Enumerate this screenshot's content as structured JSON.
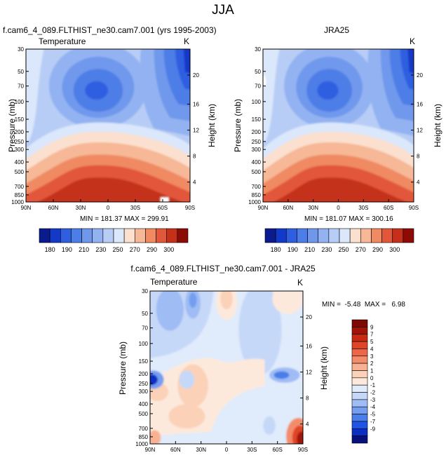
{
  "main_title": "JJA",
  "colors": {
    "neg": [
      "#08107a",
      "#0a2fc4",
      "#1f55e6",
      "#4a7ee8",
      "#759ef0",
      "#9fbcf4",
      "#c6d8f8",
      "#e0ebfb"
    ],
    "pos": [
      "#fde9dc",
      "#fbd2b8",
      "#f8b193",
      "#f38c6b",
      "#ec6648",
      "#e04527",
      "#c82b12",
      "#a01507",
      "#7a0a03"
    ]
  },
  "chart_data": [
    {
      "type": "contour",
      "title_left": "f.cam6_4_089.FLTHIST_ne30.cam7.001 (yrs 1995-2003)",
      "subtitle": "Temperature",
      "units": "K",
      "ylabel": "Pressure (mb)",
      "ylabel_right": "Height (km)",
      "x_ticks": [
        "90N",
        "60N",
        "30N",
        "0",
        "30S",
        "60S",
        "90S"
      ],
      "y_ticks": [
        "30",
        "50",
        "70",
        "100",
        "150",
        "200",
        "250",
        "300",
        "400",
        "500",
        "700",
        "850",
        "1000"
      ],
      "y_ticks_right": [
        "20",
        "16",
        "12",
        "8",
        "4"
      ],
      "stats": "MIN = 181.37  MAX = 299.91",
      "colorbar_labels": [
        "180",
        "190",
        "210",
        "230",
        "250",
        "270",
        "290",
        "300"
      ],
      "levels": [
        180,
        190,
        200,
        210,
        220,
        230,
        240,
        250,
        260,
        270,
        280,
        290,
        300
      ],
      "ylim": [
        1000,
        30
      ]
    },
    {
      "type": "contour",
      "title_right": "JRA25",
      "units": "K",
      "ylabel": "Pressure (mb)",
      "ylabel_right": "Height (km)",
      "x_ticks": [
        "90N",
        "60N",
        "30N",
        "0",
        "30S",
        "60S",
        "90S"
      ],
      "y_ticks": [
        "30",
        "50",
        "70",
        "100",
        "150",
        "200",
        "250",
        "300",
        "400",
        "500",
        "700",
        "850",
        "1000"
      ],
      "y_ticks_right": [
        "20",
        "16",
        "12",
        "8",
        "4"
      ],
      "stats": "MIN = 181.07  MAX = 300.16",
      "colorbar_labels": [
        "180",
        "190",
        "210",
        "230",
        "250",
        "270",
        "290",
        "300"
      ],
      "levels": [
        180,
        190,
        200,
        210,
        220,
        230,
        240,
        250,
        260,
        270,
        280,
        290,
        300
      ],
      "ylim": [
        1000,
        30
      ]
    },
    {
      "type": "contour",
      "title_center": "f.cam6_4_089.FLTHIST_ne30.cam7.001 - JRA25",
      "subtitle": "Temperature",
      "units": "K",
      "ylabel": "Pressure (mb)",
      "ylabel_right": "Height (km)",
      "x_ticks": [
        "90N",
        "60N",
        "30N",
        "0",
        "30S",
        "60S",
        "90S"
      ],
      "y_ticks": [
        "30",
        "50",
        "70",
        "100",
        "150",
        "200",
        "250",
        "300",
        "400",
        "500",
        "700",
        "850",
        "1000"
      ],
      "y_ticks_right": [
        "20",
        "16",
        "12",
        "8",
        "4"
      ],
      "stats": "MIN =  -5.48  MAX =   6.98",
      "colorbar_labels": [
        "9",
        "7",
        "5",
        "4",
        "3",
        "2",
        "1",
        "0",
        "-1",
        "-2",
        "-3",
        "-4",
        "-5",
        "-7",
        "-9"
      ],
      "levels": [
        -9,
        -7,
        -5,
        -4,
        -3,
        -2,
        -1,
        0,
        1,
        2,
        3,
        4,
        5,
        7,
        9
      ],
      "ylim": [
        1000,
        30
      ]
    }
  ]
}
